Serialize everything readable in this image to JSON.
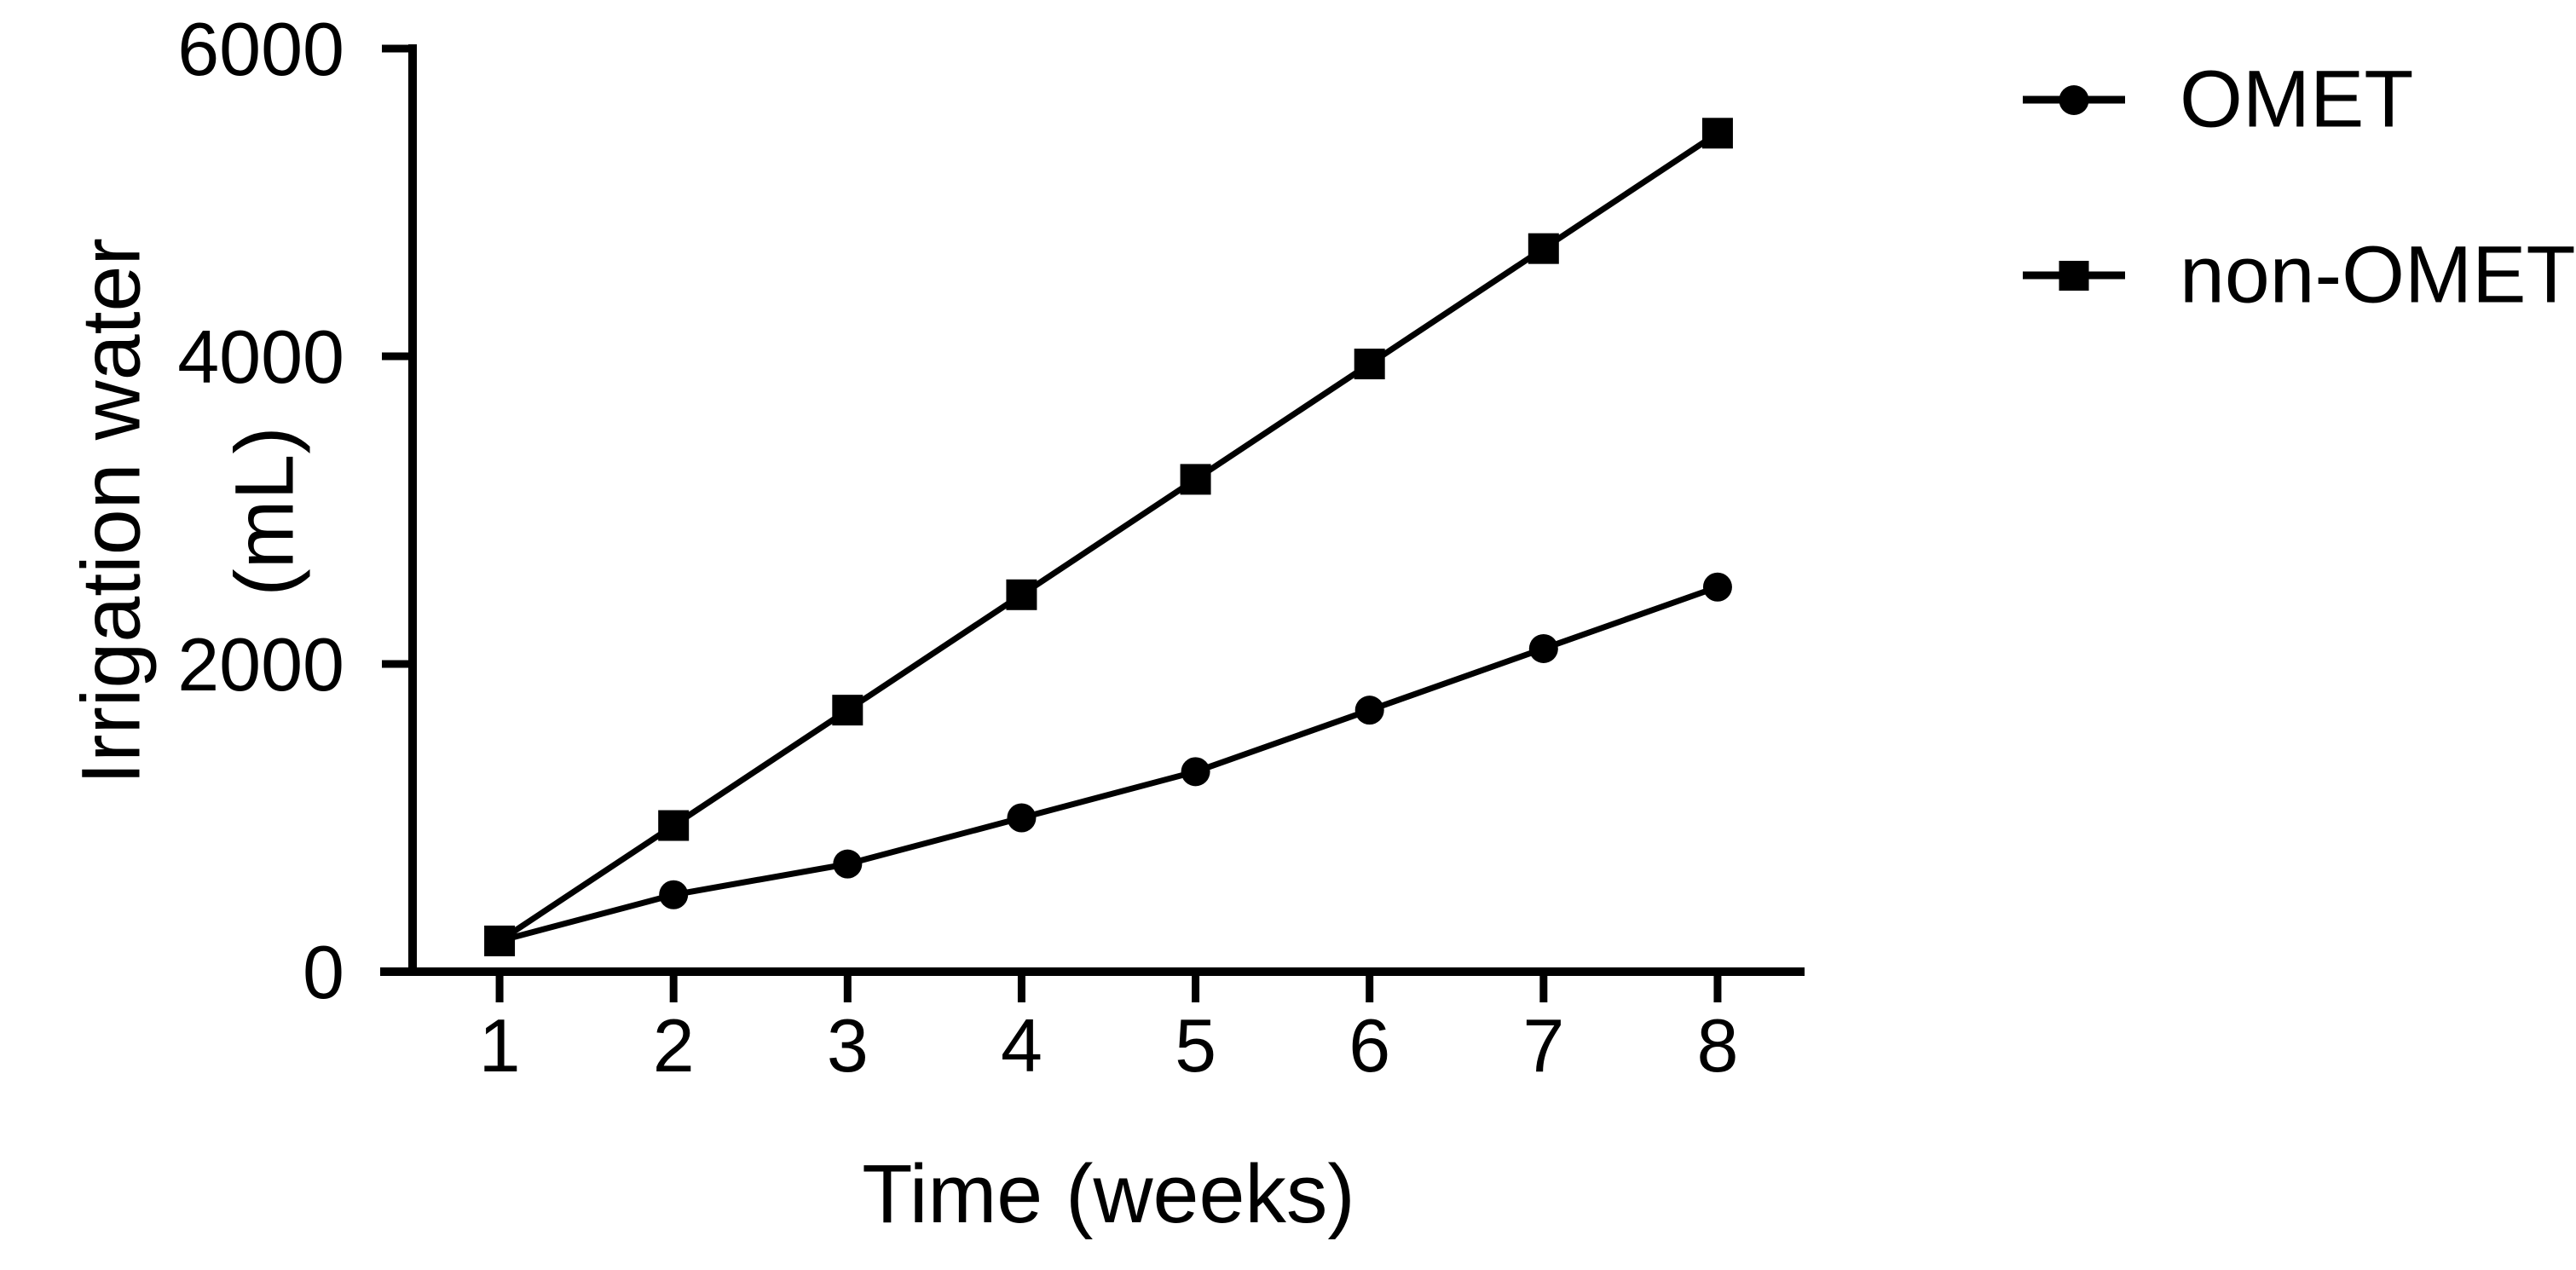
{
  "colors": {
    "foreground": "#000000",
    "background": "#ffffff"
  },
  "chart_data": {
    "type": "line",
    "title": "",
    "xlabel": "Time (weeks)",
    "ylabel_line1": "Irrigation water",
    "ylabel_line2": "(mL)",
    "x": [
      1,
      2,
      3,
      4,
      5,
      6,
      7,
      8
    ],
    "xticks": [
      1,
      2,
      3,
      4,
      5,
      6,
      7,
      8
    ],
    "xlim": [
      0.5,
      8.5
    ],
    "ylim": [
      0,
      6000
    ],
    "yticks": [
      0,
      2000,
      4000,
      6000
    ],
    "grid": false,
    "legend_position": "outside-top-right",
    "series": [
      {
        "name": "OMET",
        "marker": "circle",
        "color": "#000000",
        "values": [
          200,
          500,
          700,
          1000,
          1300,
          1700,
          2100,
          2500
        ]
      },
      {
        "name": "non-OMET",
        "marker": "square",
        "color": "#000000",
        "values": [
          200,
          950,
          1700,
          2450,
          3200,
          3950,
          4700,
          5450
        ]
      }
    ]
  }
}
